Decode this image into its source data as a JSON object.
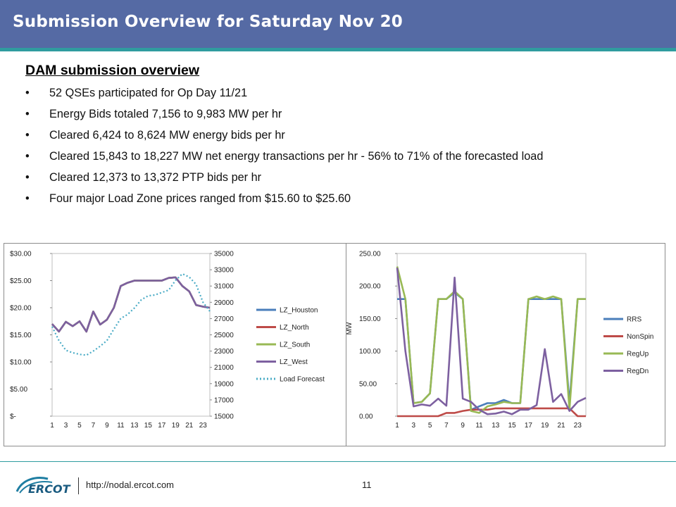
{
  "header": {
    "title": "Submission Overview for Saturday Nov 20"
  },
  "section": {
    "heading": "DAM submission overview"
  },
  "bullets": [
    "52 QSEs participated for Op Day 11/21",
    "Energy Bids totaled 7,156 to 9,983 MW per hr",
    "Cleared 6,424 to 8,624 MW energy bids per hr",
    "Cleared 15,843 to 18,227 MW net energy transactions per hr - 56% to 71% of the forecasted load",
    "Cleared 12,373 to 13,372 PTP bids per hr",
    "Four major Load Zone prices ranged from $15.60 to $25.60"
  ],
  "footer": {
    "logo_text": "ERCOT",
    "url": "http://nodal.ercot.com",
    "page": "11"
  },
  "chart_data": [
    {
      "type": "line",
      "title": "",
      "x": [
        1,
        2,
        3,
        4,
        5,
        6,
        7,
        8,
        9,
        10,
        11,
        12,
        13,
        14,
        15,
        16,
        17,
        18,
        19,
        20,
        21,
        22,
        23,
        24
      ],
      "xticks": [
        "1",
        "3",
        "5",
        "7",
        "9",
        "11",
        "13",
        "15",
        "17",
        "19",
        "21",
        "23"
      ],
      "ylim": [
        0,
        30
      ],
      "yticks": [
        "$30.00",
        "$25.00",
        "$20.00",
        "$15.00",
        "$10.00",
        "$5.00",
        "$-"
      ],
      "y2lim": [
        15000,
        35000
      ],
      "y2ticks": [
        "35000",
        "33000",
        "31000",
        "29000",
        "27000",
        "25000",
        "23000",
        "21000",
        "19000",
        "17000",
        "15000"
      ],
      "legend_position": "right",
      "colors": {
        "LZ_Houston": "#4a7ebb",
        "LZ_North": "#be4b48",
        "LZ_South": "#98b954",
        "LZ_West": "#7d60a0",
        "Load Forecast": "#4bacc6"
      },
      "series": [
        {
          "name": "LZ_Houston",
          "axis": "left",
          "values": [
            17.0,
            15.6,
            17.4,
            16.6,
            17.5,
            15.6,
            19.3,
            16.9,
            17.8,
            20.0,
            24.0,
            24.6,
            25.0,
            25.0,
            25.0,
            25.0,
            25.0,
            25.5,
            25.6,
            24.0,
            23.0,
            20.5,
            20.2,
            20.0
          ]
        },
        {
          "name": "LZ_North",
          "axis": "left",
          "values": [
            17.0,
            15.6,
            17.4,
            16.6,
            17.5,
            15.6,
            19.3,
            16.9,
            17.8,
            20.0,
            24.0,
            24.6,
            25.0,
            25.0,
            25.0,
            25.0,
            25.0,
            25.5,
            25.6,
            24.0,
            23.0,
            20.5,
            20.2,
            20.0
          ]
        },
        {
          "name": "LZ_South",
          "axis": "left",
          "values": [
            17.0,
            15.6,
            17.4,
            16.6,
            17.5,
            15.6,
            19.3,
            16.9,
            17.8,
            20.0,
            24.0,
            24.6,
            25.0,
            25.0,
            25.0,
            25.0,
            25.0,
            25.5,
            25.6,
            24.0,
            23.0,
            20.5,
            20.2,
            20.0
          ]
        },
        {
          "name": "LZ_West",
          "axis": "left",
          "values": [
            17.0,
            15.6,
            17.4,
            16.6,
            17.5,
            15.6,
            19.3,
            16.9,
            17.8,
            20.0,
            24.0,
            24.6,
            25.0,
            25.0,
            25.0,
            25.0,
            25.0,
            25.5,
            25.6,
            24.0,
            23.0,
            20.5,
            20.2,
            20.0
          ]
        },
        {
          "name": "Load Forecast",
          "axis": "right",
          "dashed": true,
          "values": [
            26000,
            24300,
            23100,
            22800,
            22600,
            22500,
            23000,
            23600,
            24300,
            25700,
            27000,
            27500,
            28300,
            29300,
            29800,
            29900,
            30200,
            30500,
            31700,
            32500,
            32100,
            31200,
            29000,
            27900
          ]
        }
      ]
    },
    {
      "type": "line",
      "title": "",
      "ylabel": "MW",
      "x": [
        1,
        2,
        3,
        4,
        5,
        6,
        7,
        8,
        9,
        10,
        11,
        12,
        13,
        14,
        15,
        16,
        17,
        18,
        19,
        20,
        21,
        22,
        23,
        24
      ],
      "xticks": [
        "1",
        "3",
        "5",
        "7",
        "9",
        "11",
        "13",
        "15",
        "17",
        "19",
        "21",
        "23"
      ],
      "ylim": [
        0,
        250
      ],
      "yticks": [
        "250.00",
        "200.00",
        "150.00",
        "100.00",
        "50.00",
        "0.00"
      ],
      "legend_position": "right",
      "colors": {
        "RRS": "#4a7ebb",
        "NonSpin": "#be4b48",
        "RegUp": "#98b954",
        "RegDn": "#7d60a0"
      },
      "series": [
        {
          "name": "RRS",
          "values": [
            180,
            180,
            20,
            22,
            35,
            180,
            180,
            190,
            180,
            10,
            15,
            20,
            20,
            25,
            20,
            20,
            180,
            180,
            180,
            180,
            180,
            20,
            180,
            180
          ]
        },
        {
          "name": "NonSpin",
          "values": [
            0,
            0,
            0,
            0,
            0,
            0,
            5,
            5,
            8,
            10,
            10,
            10,
            12,
            12,
            12,
            12,
            12,
            12,
            12,
            12,
            12,
            12,
            0,
            0
          ]
        },
        {
          "name": "RegUp",
          "values": [
            230,
            180,
            20,
            22,
            35,
            180,
            180,
            192,
            180,
            8,
            5,
            15,
            18,
            22,
            20,
            20,
            180,
            184,
            180,
            184,
            180,
            10,
            180,
            180
          ]
        },
        {
          "name": "RegDn",
          "values": [
            228,
            100,
            15,
            18,
            16,
            27,
            16,
            213,
            27,
            22,
            10,
            3,
            4,
            7,
            3,
            10,
            10,
            17,
            103,
            22,
            34,
            8,
            22,
            28
          ]
        }
      ]
    }
  ]
}
